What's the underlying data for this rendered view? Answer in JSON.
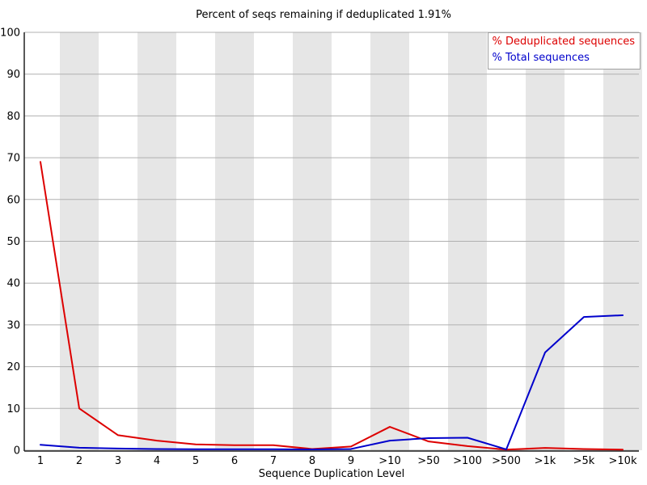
{
  "chart_data": {
    "type": "line",
    "title": "Percent of seqs remaining if deduplicated 1.91%",
    "xlabel": "Sequence Duplication Level",
    "ylabel": "",
    "ylim": [
      0,
      100
    ],
    "yticks": [
      0,
      10,
      20,
      30,
      40,
      50,
      60,
      70,
      80,
      90,
      100
    ],
    "categories": [
      "1",
      "2",
      "3",
      "4",
      "5",
      "6",
      "7",
      "8",
      "9",
      ">10",
      ">50",
      ">100",
      ">500",
      ">1k",
      ">5k",
      ">10k"
    ],
    "series": [
      {
        "name": "% Deduplicated sequences",
        "color": "#dd0000",
        "values": [
          69,
          10,
          3.6,
          2.3,
          1.4,
          1.2,
          1.2,
          0.3,
          0.9,
          5.6,
          2.1,
          1.0,
          0.15,
          0.55,
          0.3,
          0.15
        ]
      },
      {
        "name": "% Total sequences",
        "color": "#0000cc",
        "values": [
          1.3,
          0.6,
          0.4,
          0.3,
          0.25,
          0.25,
          0.25,
          0.2,
          0.3,
          2.3,
          2.9,
          3.0,
          0.2,
          23.4,
          31.9,
          32.3
        ]
      }
    ],
    "legend_position": "top-right",
    "grid": "horizontal",
    "stripe_color": "#e6e6e6",
    "grid_color": "#b0b0b0",
    "axis_color": "#222222",
    "background": "#ffffff"
  }
}
